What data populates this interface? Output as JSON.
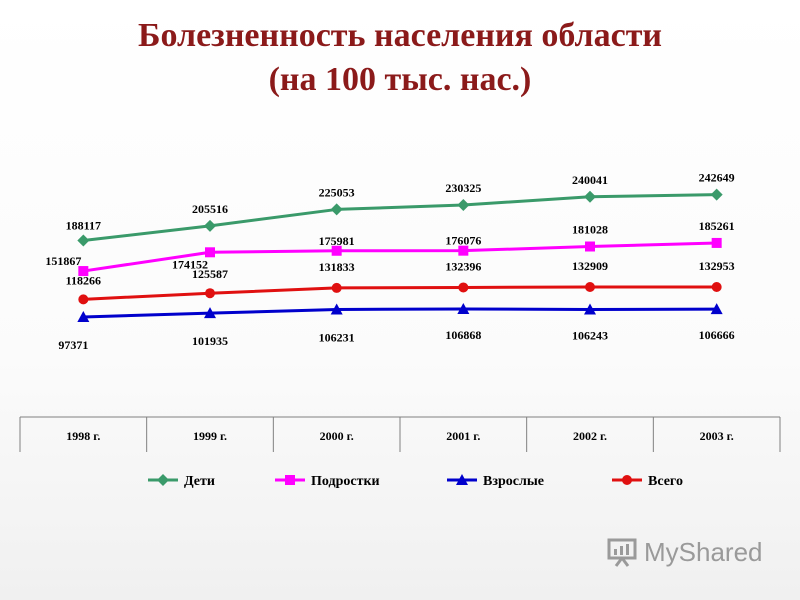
{
  "title_line1": "Болезненность населения области",
  "title_line2": "(на 100 тыс. нас.)",
  "watermark": "MyShared",
  "colors": {
    "children": "#3a9a6a",
    "teens": "#ff00ff",
    "adults": "#0000cc",
    "total": "#e01010"
  },
  "chart_data": {
    "type": "line",
    "categories": [
      "1998 г.",
      "1999 г.",
      "2000 г.",
      "2001 г.",
      "2002 г.",
      "2003 г."
    ],
    "series": [
      {
        "name": "Дети",
        "marker": "diamond",
        "color": "#3a9a6a",
        "values": [
          188117,
          205516,
          225053,
          230325,
          240041,
          242649
        ]
      },
      {
        "name": "Подростки",
        "marker": "square",
        "color": "#ff00ff",
        "values": [
          151867,
          174152,
          175981,
          176076,
          181028,
          185261
        ]
      },
      {
        "name": "Взрослые",
        "marker": "triangle",
        "color": "#0000cc",
        "values": [
          97371,
          101935,
          106231,
          106868,
          106243,
          106666
        ]
      },
      {
        "name": "Всего",
        "marker": "circle",
        "color": "#e01010",
        "values": [
          118266,
          125587,
          131833,
          132396,
          132909,
          132953
        ]
      }
    ],
    "legend_position": "bottom",
    "grid": false
  }
}
